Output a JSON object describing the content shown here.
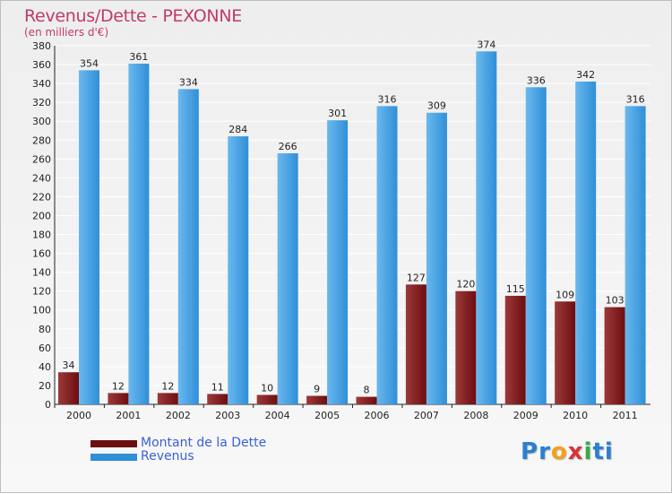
{
  "colors": {
    "debt": "#6e0d10",
    "debt_light": "#9b3a3a",
    "revenue": "#2f8fd8",
    "revenue_light": "#6ab8ee",
    "title": "#c03a6a",
    "legend_text": "#3a5fd8",
    "grid": "#ffffff"
  },
  "chart_data": {
    "type": "bar",
    "title": "Revenus/Dette - PEXONNE",
    "subtitle": "(en milliers d'€)",
    "categories": [
      "2000",
      "2001",
      "2002",
      "2003",
      "2004",
      "2005",
      "2006",
      "2007",
      "2008",
      "2009",
      "2010",
      "2011"
    ],
    "series": [
      {
        "name": "Montant de la Dette",
        "values": [
          34,
          12,
          12,
          11,
          10,
          9,
          8,
          127,
          120,
          115,
          109,
          103
        ]
      },
      {
        "name": "Revenus",
        "values": [
          354,
          361,
          334,
          284,
          266,
          301,
          316,
          309,
          374,
          336,
          342,
          316
        ]
      }
    ],
    "ylim": [
      0,
      380
    ],
    "yticks": [
      0,
      20,
      40,
      60,
      80,
      100,
      120,
      140,
      160,
      180,
      200,
      220,
      240,
      260,
      280,
      300,
      320,
      340,
      360,
      380
    ],
    "grid": true,
    "legend_position": "bottom-left"
  },
  "logo": {
    "letters": [
      "P",
      "r",
      "o",
      "x",
      "i",
      "t",
      "i"
    ],
    "letter_colors": [
      "#2a7fd0",
      "#2a7fd0",
      "#f3a11a",
      "#d8323a",
      "#3aa84a",
      "#2a7fd0",
      "#2a7fd0"
    ]
  }
}
